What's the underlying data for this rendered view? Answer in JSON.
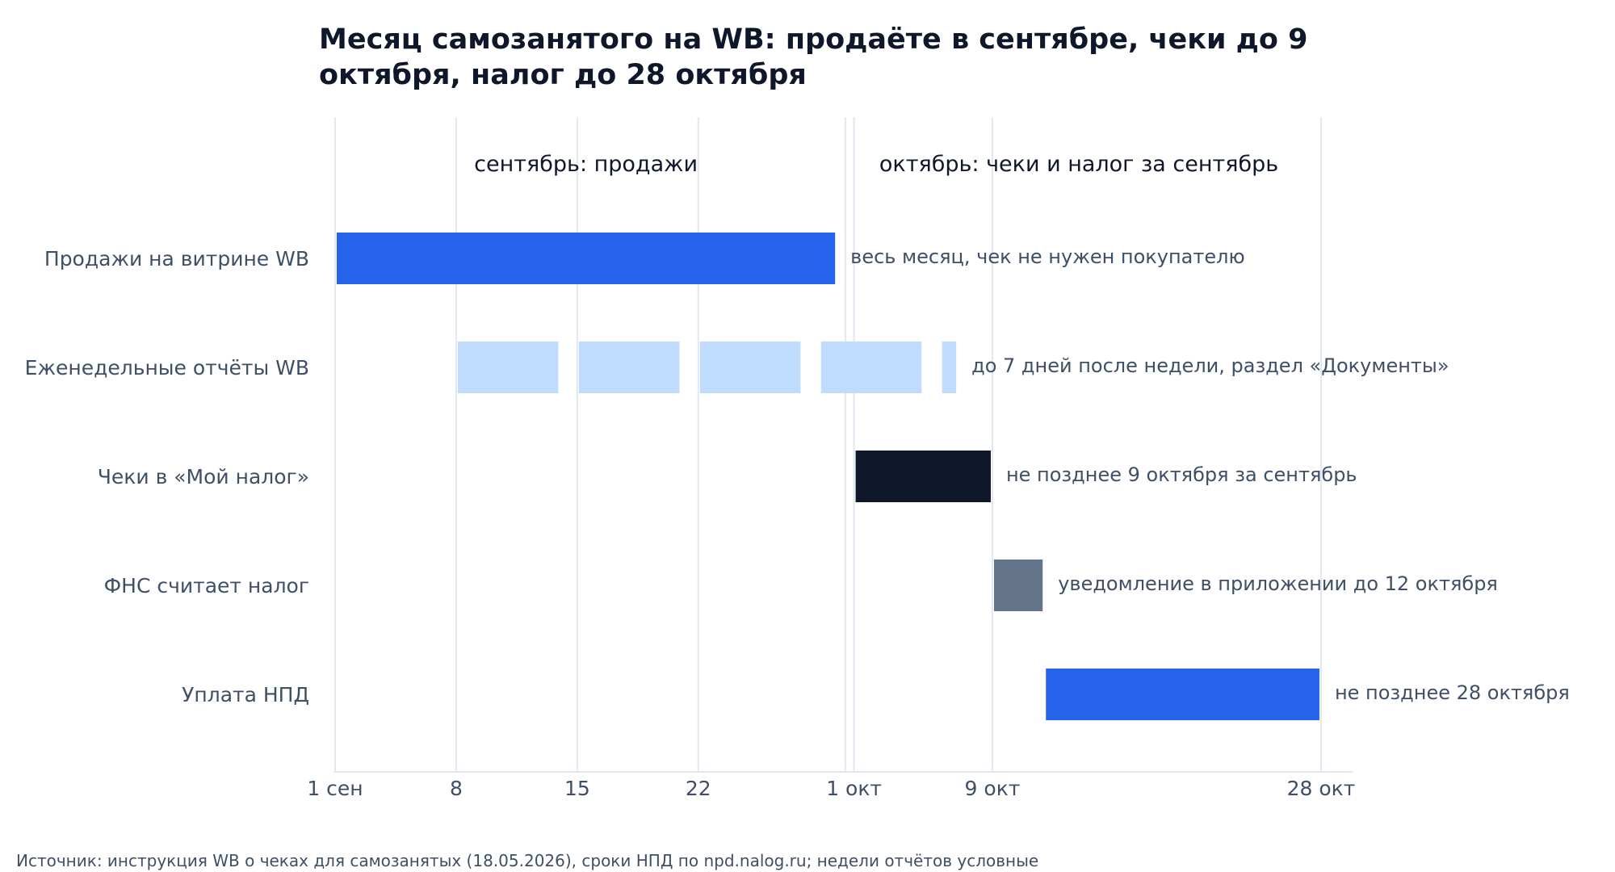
{
  "chart_data": {
    "type": "gantt",
    "title_lines": [
      "Месяц самозанятого на WB: продаёте в сентябре, чеки до 9",
      "октября, налог до 28 октября"
    ],
    "periods": [
      {
        "label": "сентябрь: продажи",
        "center": 15.5
      },
      {
        "label": "октябрь: чеки и налог за сентябрь",
        "center": 44
      }
    ],
    "x_ticks": [
      {
        "value": 1,
        "label": "1 сен"
      },
      {
        "value": 8,
        "label": "8"
      },
      {
        "value": 15,
        "label": "15"
      },
      {
        "value": 22,
        "label": "22"
      },
      {
        "value": 31,
        "label": "1 окт"
      },
      {
        "value": 39,
        "label": "9 окт"
      },
      {
        "value": 58,
        "label": "28 окт"
      }
    ],
    "x_range": [
      1,
      60
    ],
    "month_boundaries": [
      30.5,
      31
    ],
    "rows": [
      {
        "label": "Продажи на витрине WB",
        "segments": [
          [
            1,
            30
          ]
        ],
        "color": "#2563eb",
        "annotation": "весь месяц, чек не нужен покупателю"
      },
      {
        "label": "Еженедельные отчёты WB",
        "segments": [
          [
            8,
            14
          ],
          [
            15,
            21
          ],
          [
            22,
            28
          ],
          [
            29,
            35
          ],
          [
            36,
            37
          ]
        ],
        "color": "#bfdbfe",
        "annotation": "до 7 дней после недели, раздел «Документы»"
      },
      {
        "label": "Чеки в «Мой налог»",
        "segments": [
          [
            31,
            39
          ]
        ],
        "color": "#0f172a",
        "annotation": "не позднее 9 октября за сентябрь"
      },
      {
        "label": "ФНС считает налог",
        "segments": [
          [
            39,
            42
          ]
        ],
        "color": "#64748b",
        "annotation": "уведомление в приложении до 12 октября"
      },
      {
        "label": "Уплата НПД",
        "segments": [
          [
            42,
            58
          ]
        ],
        "color": "#2563eb",
        "annotation": "не позднее 28 октября"
      }
    ],
    "grid": true,
    "source": "Источник: инструкция WB о чеках для самозанятых (18.05.2026), сроки НПД по npd.nalog.ru; недели отчётов условные"
  }
}
